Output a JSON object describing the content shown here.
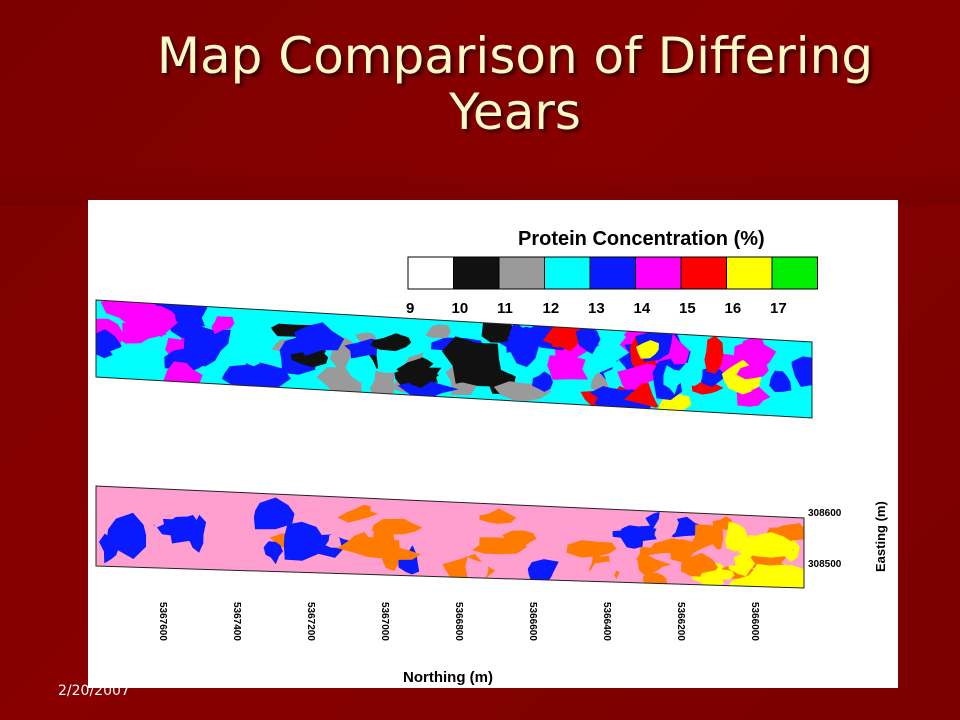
{
  "slide": {
    "title_line1": "Map Comparison of Differing",
    "title_line2": "Years",
    "date": "2/20/2007"
  },
  "legend": {
    "title": "Protein Concentration (%)",
    "ticks": [
      "9",
      "10",
      "11",
      "12",
      "13",
      "14",
      "15",
      "16",
      "17"
    ],
    "colors": [
      "#ffffff",
      "#111111",
      "#9a9a9a",
      "#00ffff",
      "#0a1aff",
      "#ff00ff",
      "#ff0000",
      "#ffff00",
      "#00ee00"
    ]
  },
  "map_top": {
    "patch_colors": [
      "#0a1aff",
      "#00ffff",
      "#ff00ff",
      "#9a9a9a",
      "#111111",
      "#ff0000",
      "#ffff00"
    ]
  },
  "map_bottom": {
    "patch_colors": [
      "#ff9fd0",
      "#0a1aff",
      "#ff7a00",
      "#ffff00"
    ]
  },
  "axes": {
    "easting_label": "Easting (m)",
    "easting_ticks": [
      "308600",
      "308500"
    ],
    "northing_label": "Northing (m)",
    "northing_ticks": [
      "5367600",
      "5367400",
      "5367200",
      "5367000",
      "5366800",
      "5366600",
      "5366400",
      "5366200",
      "5366000"
    ]
  }
}
